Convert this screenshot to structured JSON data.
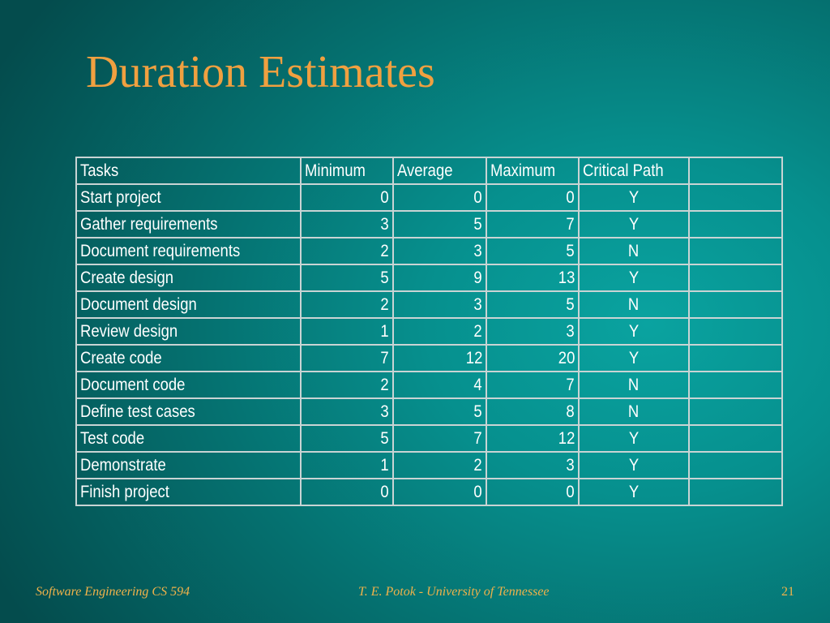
{
  "slide": {
    "title": "Duration Estimates"
  },
  "table": {
    "headers": [
      "Tasks",
      "Minimum",
      "Average",
      "Maximum",
      "Critical Path",
      ""
    ],
    "rows": [
      {
        "task": "Start project",
        "min": "0",
        "avg": "0",
        "max": "0",
        "critical": "Y",
        "extra": ""
      },
      {
        "task": "Gather requirements",
        "min": "3",
        "avg": "5",
        "max": "7",
        "critical": "Y",
        "extra": ""
      },
      {
        "task": "Document requirements",
        "min": "2",
        "avg": "3",
        "max": "5",
        "critical": "N",
        "extra": ""
      },
      {
        "task": "Create design",
        "min": "5",
        "avg": "9",
        "max": "13",
        "critical": "Y",
        "extra": ""
      },
      {
        "task": "Document design",
        "min": "2",
        "avg": "3",
        "max": "5",
        "critical": "N",
        "extra": ""
      },
      {
        "task": "Review design",
        "min": "1",
        "avg": "2",
        "max": "3",
        "critical": "Y",
        "extra": ""
      },
      {
        "task": "Create code",
        "min": "7",
        "avg": "12",
        "max": "20",
        "critical": "Y",
        "extra": ""
      },
      {
        "task": "Document code",
        "min": "2",
        "avg": "4",
        "max": "7",
        "critical": "N",
        "extra": ""
      },
      {
        "task": "Define test cases",
        "min": "3",
        "avg": "5",
        "max": "8",
        "critical": "N",
        "extra": ""
      },
      {
        "task": "Test code",
        "min": "5",
        "avg": "7",
        "max": "12",
        "critical": "Y",
        "extra": ""
      },
      {
        "task": "Demonstrate",
        "min": "1",
        "avg": "2",
        "max": "3",
        "critical": "Y",
        "extra": ""
      },
      {
        "task": "Finish project",
        "min": "0",
        "avg": "0",
        "max": "0",
        "critical": "Y",
        "extra": ""
      }
    ]
  },
  "footer": {
    "left": "Software Engineering CS 594",
    "center": "T. E. Potok - University of Tennessee",
    "page_number": "21"
  },
  "colors": {
    "title": "#f0a040",
    "footer": "#f0b24a",
    "table_text": "#ffffff",
    "table_border": "#c9d4d4",
    "background": "#06908e"
  }
}
